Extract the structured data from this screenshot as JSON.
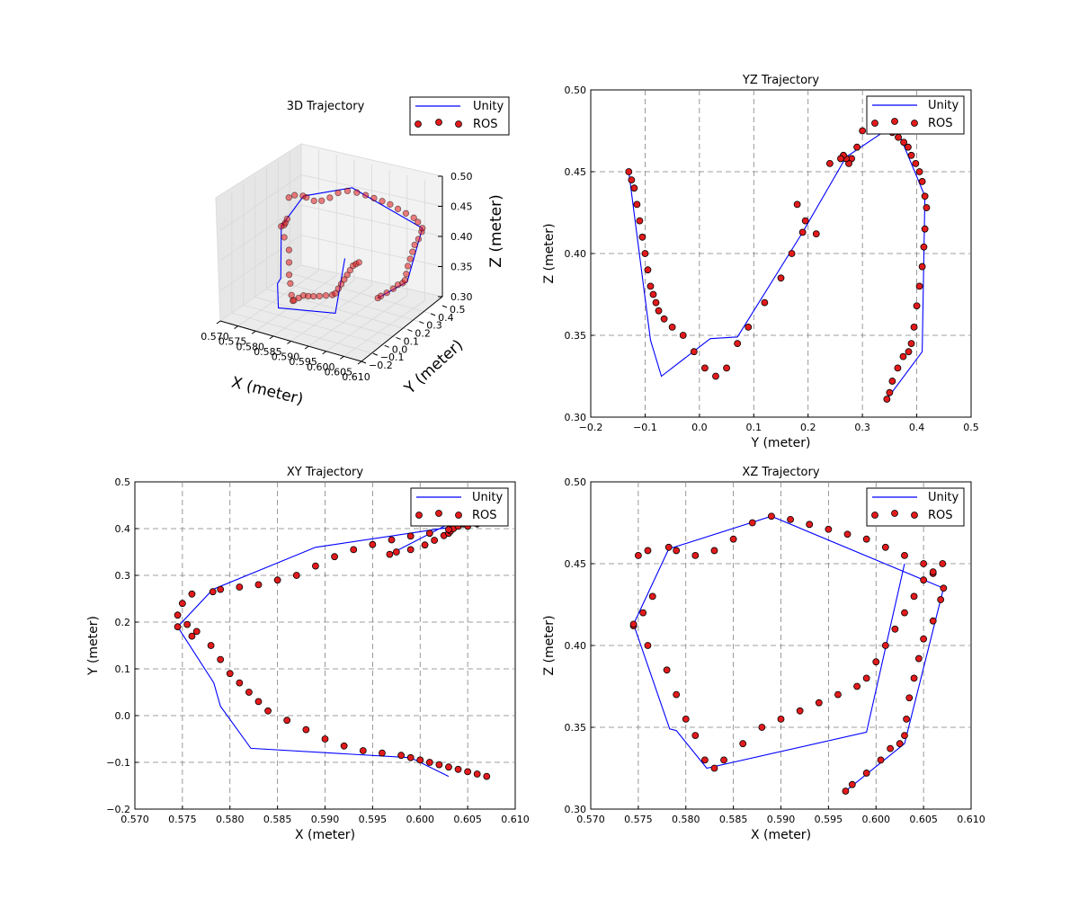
{
  "colors": {
    "unity": "#0000ff",
    "ros_fill": "#e31a1c",
    "ros_edge": "#000000",
    "grid": "#808080"
  },
  "chart_data": [
    {
      "id": "3d",
      "type": "scatter",
      "title": "3D Trajectory",
      "xlabel": "X (meter)",
      "ylabel": "Y (meter)",
      "zlabel": "Z (meter)",
      "xlim": [
        0.57,
        0.61
      ],
      "ylim": [
        -0.2,
        0.5
      ],
      "zlim": [
        0.3,
        0.5
      ],
      "xticks": [
        "0.570",
        "0.575",
        "0.580",
        "0.585",
        "0.590",
        "0.595",
        "0.600",
        "0.605",
        "0.610"
      ],
      "yticks": [
        "−0.2",
        "−0.1",
        "0.0",
        "0.1",
        "0.2",
        "0.3",
        "0.4",
        "0.5"
      ],
      "zticks": [
        "0.30",
        "0.35",
        "0.40",
        "0.45",
        "0.50"
      ],
      "legend": [
        "Unity",
        "ROS"
      ],
      "legend_loc": "upper right",
      "grid": true
    },
    {
      "id": "yz",
      "type": "scatter",
      "title": "YZ Trajectory",
      "xlabel": "Y (meter)",
      "ylabel": "Z (meter)",
      "xlim": [
        -0.2,
        0.5
      ],
      "ylim": [
        0.3,
        0.5
      ],
      "xticks": [
        "−0.2",
        "−0.1",
        "0.0",
        "0.1",
        "0.2",
        "0.3",
        "0.4",
        "0.5"
      ],
      "yticks": [
        "0.30",
        "0.35",
        "0.40",
        "0.45",
        "0.50"
      ],
      "legend": [
        "Unity",
        "ROS"
      ],
      "legend_loc": "upper right",
      "grid": true
    },
    {
      "id": "xy",
      "type": "scatter",
      "title": "XY Trajectory",
      "xlabel": "X (meter)",
      "ylabel": "Y (meter)",
      "xlim": [
        0.57,
        0.61
      ],
      "ylim": [
        -0.2,
        0.5
      ],
      "xticks": [
        "0.570",
        "0.575",
        "0.580",
        "0.585",
        "0.590",
        "0.595",
        "0.600",
        "0.605",
        "0.610"
      ],
      "yticks": [
        "−0.2",
        "−0.1",
        "0.0",
        "0.1",
        "0.2",
        "0.3",
        "0.4",
        "0.5"
      ],
      "legend": [
        "Unity",
        "ROS"
      ],
      "legend_loc": "upper right",
      "grid": true
    },
    {
      "id": "xz",
      "type": "scatter",
      "title": "XZ Trajectory",
      "xlabel": "X (meter)",
      "ylabel": "Z (meter)",
      "xlim": [
        0.57,
        0.61
      ],
      "ylim": [
        0.3,
        0.5
      ],
      "xticks": [
        "0.570",
        "0.575",
        "0.580",
        "0.585",
        "0.590",
        "0.595",
        "0.600",
        "0.605",
        "0.610"
      ],
      "yticks": [
        "0.30",
        "0.35",
        "0.40",
        "0.45",
        "0.50"
      ],
      "legend": [
        "Unity",
        "ROS"
      ],
      "legend_loc": "upper right",
      "grid": true
    }
  ],
  "trajectory": {
    "series": [
      {
        "name": "Unity",
        "x": [
          0.5968,
          0.603,
          0.6071,
          0.589,
          0.5782,
          0.5745,
          0.5783,
          0.579,
          0.5822,
          0.599,
          0.603
        ],
        "y": [
          0.345,
          0.41,
          0.415,
          0.36,
          0.27,
          0.19,
          0.07,
          0.02,
          -0.07,
          -0.09,
          -0.13
        ],
        "z": [
          0.311,
          0.34,
          0.435,
          0.479,
          0.459,
          0.413,
          0.349,
          0.348,
          0.325,
          0.347,
          0.45
        ]
      },
      {
        "name": "ROS",
        "x": [
          0.5968,
          0.5975,
          0.599,
          0.6005,
          0.6015,
          0.6025,
          0.603,
          0.6032,
          0.6035,
          0.604,
          0.6045,
          0.605,
          0.606,
          0.6068,
          0.6071,
          0.606,
          0.605,
          0.603,
          0.601,
          0.599,
          0.597,
          0.595,
          0.593,
          0.591,
          0.589,
          0.587,
          0.585,
          0.583,
          0.581,
          0.579,
          0.5782,
          0.576,
          0.575,
          0.5745,
          0.5755,
          0.5765,
          0.5745,
          0.576,
          0.578,
          0.579,
          0.58,
          0.581,
          0.582,
          0.583,
          0.584,
          0.586,
          0.588,
          0.59,
          0.592,
          0.594,
          0.596,
          0.598,
          0.599,
          0.6,
          0.601,
          0.602,
          0.603,
          0.604,
          0.605,
          0.606,
          0.607
        ],
        "y": [
          0.345,
          0.35,
          0.355,
          0.365,
          0.375,
          0.385,
          0.39,
          0.395,
          0.4,
          0.405,
          0.41,
          0.413,
          0.415,
          0.418,
          0.415,
          0.41,
          0.405,
          0.398,
          0.39,
          0.384,
          0.376,
          0.366,
          0.355,
          0.34,
          0.32,
          0.3,
          0.29,
          0.28,
          0.275,
          0.27,
          0.265,
          0.26,
          0.24,
          0.215,
          0.195,
          0.18,
          0.19,
          0.17,
          0.15,
          0.12,
          0.09,
          0.07,
          0.05,
          0.03,
          0.01,
          -0.01,
          -0.03,
          -0.05,
          -0.065,
          -0.075,
          -0.08,
          -0.085,
          -0.09,
          -0.095,
          -0.1,
          -0.105,
          -0.11,
          -0.115,
          -0.12,
          -0.125,
          -0.13
        ],
        "z": [
          0.311,
          0.315,
          0.322,
          0.33,
          0.337,
          0.34,
          0.345,
          0.355,
          0.368,
          0.38,
          0.392,
          0.404,
          0.415,
          0.428,
          0.435,
          0.444,
          0.45,
          0.455,
          0.46,
          0.465,
          0.468,
          0.471,
          0.474,
          0.477,
          0.479,
          0.475,
          0.465,
          0.458,
          0.455,
          0.458,
          0.46,
          0.458,
          0.455,
          0.412,
          0.42,
          0.43,
          0.413,
          0.4,
          0.385,
          0.37,
          0.355,
          0.345,
          0.33,
          0.325,
          0.33,
          0.34,
          0.35,
          0.355,
          0.36,
          0.365,
          0.37,
          0.375,
          0.38,
          0.39,
          0.4,
          0.41,
          0.42,
          0.43,
          0.44,
          0.445,
          0.45
        ]
      }
    ]
  }
}
